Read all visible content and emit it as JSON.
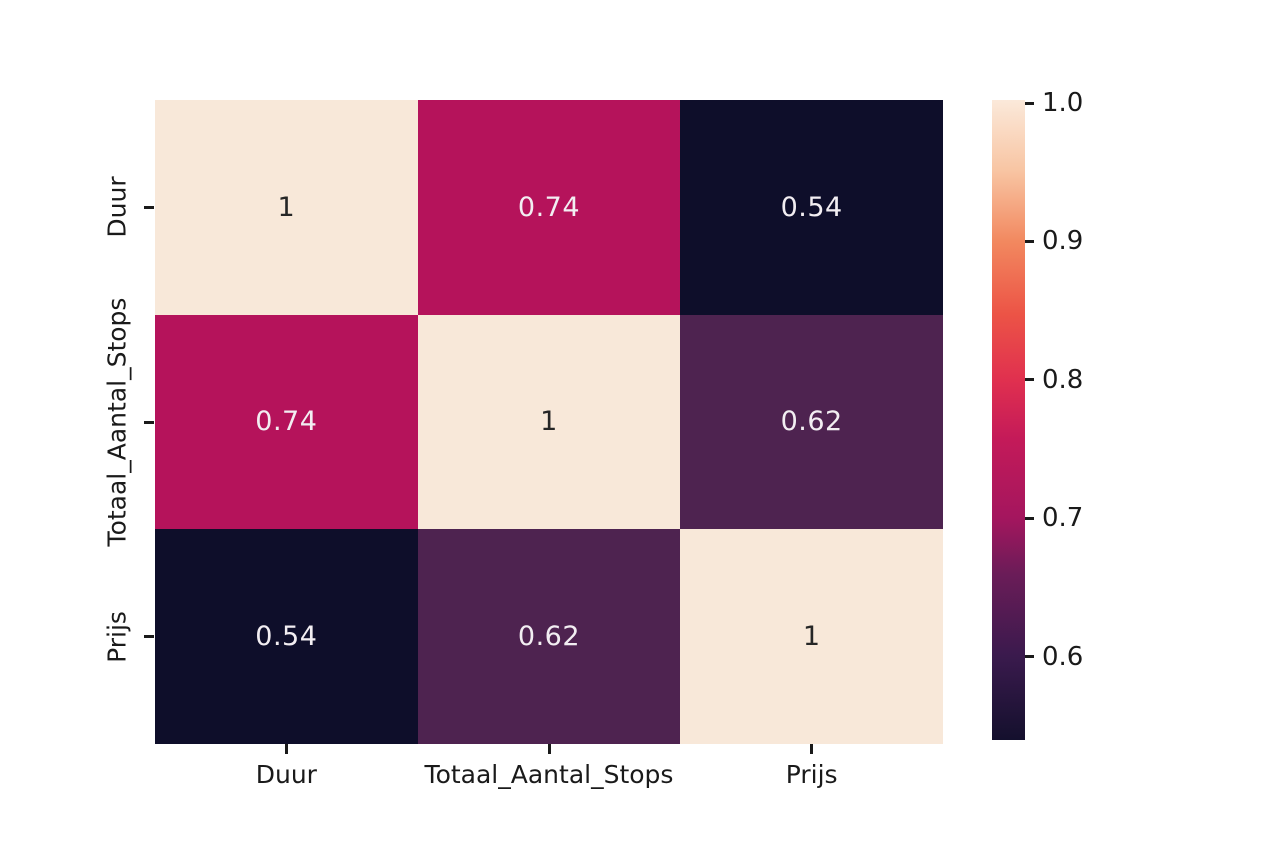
{
  "figure": {
    "background_color": "#ffffff",
    "kind": "correlation-heatmap"
  },
  "chart_data": {
    "type": "heatmap",
    "title": "",
    "xlabel": "",
    "ylabel": "",
    "x_tick_labels": [
      "Duur",
      "Totaal_Aantal_Stops",
      "Prijs"
    ],
    "y_tick_labels": [
      "Duur",
      "Totaal_Aantal_Stops",
      "Prijs"
    ],
    "matrix": [
      [
        1.0,
        0.74,
        0.54
      ],
      [
        0.74,
        1.0,
        0.62
      ],
      [
        0.54,
        0.62,
        1.0
      ]
    ],
    "cell_labels": [
      [
        "1",
        "0.74",
        "0.54"
      ],
      [
        "0.74",
        "1",
        "0.62"
      ],
      [
        "0.54",
        "0.62",
        "1"
      ]
    ],
    "cell_colors": [
      [
        "#f8e8d9",
        "#b5135b",
        "#0e0e2a"
      ],
      [
        "#b5135b",
        "#f8e8d9",
        "#4e2350"
      ],
      [
        "#0e0e2a",
        "#4e2350",
        "#f8e8d9"
      ]
    ],
    "cell_text_colors": [
      [
        "#262626",
        "#f2eef2",
        "#f2eef2"
      ],
      [
        "#f2eef2",
        "#262626",
        "#f2eef2"
      ],
      [
        "#f2eef2",
        "#f2eef2",
        "#262626"
      ]
    ],
    "colormap_name": "rocket",
    "grid": false,
    "colorbar": {
      "position": "right",
      "vmin": 0.54,
      "vmax": 1.0,
      "tick_labels": [
        "1.0",
        "0.9",
        "0.8",
        "0.7",
        "0.6"
      ],
      "gradient_stops": [
        {
          "pos": 0.0,
          "color": "#fbe9da"
        },
        {
          "pos": 0.11,
          "color": "#f8c5a3"
        },
        {
          "pos": 0.222,
          "color": "#f2885f"
        },
        {
          "pos": 0.334,
          "color": "#ec5446"
        },
        {
          "pos": 0.438,
          "color": "#e0304f"
        },
        {
          "pos": 0.53,
          "color": "#c41a59"
        },
        {
          "pos": 0.653,
          "color": "#a4165e"
        },
        {
          "pos": 0.74,
          "color": "#6b1c58"
        },
        {
          "pos": 0.869,
          "color": "#3a1a4d"
        },
        {
          "pos": 1.0,
          "color": "#14102d"
        }
      ]
    },
    "axis_tick_color": "#1a1a1a"
  }
}
